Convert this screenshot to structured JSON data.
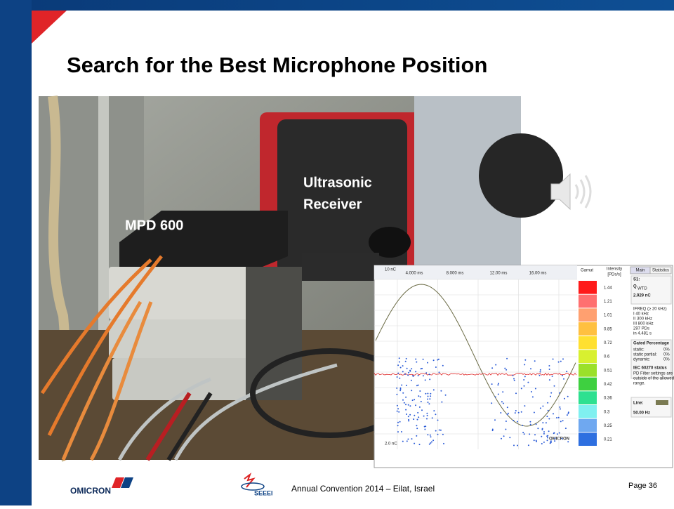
{
  "title": "Search for the Best Microphone Position",
  "photo": {
    "receiver_label": [
      "Ultrasonic",
      "Receiver"
    ],
    "device_label": "MPD 600"
  },
  "inset": {
    "top_value": "10 nC",
    "bottom_value": "2.0 nC",
    "time_ticks": [
      "4.000 ms",
      "8.000 ms",
      "12.00 ms",
      "16.00 ms"
    ],
    "watermark": "OMICRON",
    "gamut_title": "Gamut",
    "intensity_title": [
      "Intensity",
      "[PDs/s]"
    ],
    "gamut_values": [
      "1.44",
      "1.21",
      "1.01",
      "0.85",
      "0.72",
      "0.6",
      "0.51",
      "0.42",
      "0.36",
      "0.3",
      "0.25",
      "0.21"
    ],
    "tabs": [
      "Main",
      "Statistics"
    ],
    "stats": {
      "channel": "S1:",
      "q": "Q",
      "q_sub": "WTD",
      "charge": "2.929 nC",
      "freq_lines": [
        "IFREQ (≥ 20 kHz)",
        "I    40 kHz",
        "II   300 kHz",
        "III  800 kHz",
        "297 PDs",
        "in 4.481 s"
      ],
      "gated_title": "Gated Percentage",
      "gated_lines": [
        [
          "static:",
          "0%"
        ],
        [
          "static partial:",
          "0%"
        ],
        [
          "dynamic:",
          "0%"
        ]
      ],
      "iec_title": "IEC 60270 status",
      "iec_warning": [
        "PD Filter settings are",
        "outside of the allowed",
        "range."
      ],
      "line_label": "Line:",
      "line_value": "50.00 Hz"
    }
  },
  "footer": {
    "omicron_logo": "OMICRON",
    "seeei_logo": "SEEEI",
    "event": "Annual Convention 2014 – Eilat, Israel",
    "page": "Page 36"
  }
}
